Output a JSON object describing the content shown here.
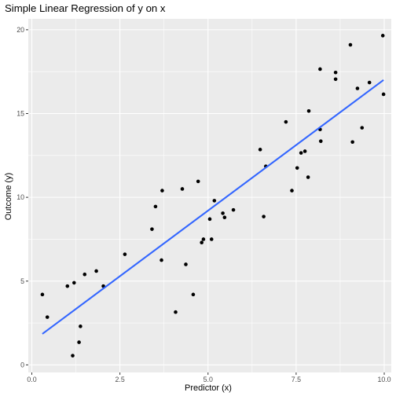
{
  "chart_data": {
    "type": "scatter",
    "title": "Simple Linear Regression of y on x",
    "xlabel": "Predictor (x)",
    "ylabel": "Outcome (y)",
    "xlim": [
      -0.1,
      10.2
    ],
    "ylim": [
      -0.45,
      20.65
    ],
    "x_ticks": [
      0,
      2.5,
      5,
      7.5,
      10
    ],
    "x_tick_labels": [
      "0.0",
      "2.5",
      "5.0",
      "7.5",
      "10.0"
    ],
    "y_ticks": [
      0,
      5,
      10,
      15,
      20
    ],
    "y_tick_labels": [
      "0",
      "5",
      "10",
      "15",
      "20"
    ],
    "grid": true,
    "background": "#ebebeb",
    "point_color": "#000000",
    "line_color": "#3366ff",
    "fit_line": {
      "x": [
        0.3,
        9.98
      ],
      "y": [
        1.85,
        17.0
      ]
    },
    "points": [
      {
        "x": 0.3,
        "y": 4.2
      },
      {
        "x": 0.44,
        "y": 2.85
      },
      {
        "x": 1.01,
        "y": 4.7
      },
      {
        "x": 1.16,
        "y": 0.55
      },
      {
        "x": 1.2,
        "y": 4.9
      },
      {
        "x": 1.34,
        "y": 1.35
      },
      {
        "x": 1.38,
        "y": 2.3
      },
      {
        "x": 1.5,
        "y": 5.4
      },
      {
        "x": 1.83,
        "y": 5.6
      },
      {
        "x": 2.03,
        "y": 4.7
      },
      {
        "x": 2.64,
        "y": 6.6
      },
      {
        "x": 3.41,
        "y": 8.1
      },
      {
        "x": 3.51,
        "y": 9.45
      },
      {
        "x": 3.68,
        "y": 6.25
      },
      {
        "x": 3.7,
        "y": 10.4
      },
      {
        "x": 4.08,
        "y": 3.15
      },
      {
        "x": 4.27,
        "y": 10.5
      },
      {
        "x": 4.37,
        "y": 6.0
      },
      {
        "x": 4.58,
        "y": 4.2
      },
      {
        "x": 4.72,
        "y": 10.95
      },
      {
        "x": 4.82,
        "y": 7.3
      },
      {
        "x": 4.87,
        "y": 7.5
      },
      {
        "x": 5.05,
        "y": 8.7
      },
      {
        "x": 5.1,
        "y": 7.5
      },
      {
        "x": 5.18,
        "y": 9.8
      },
      {
        "x": 5.42,
        "y": 9.05
      },
      {
        "x": 5.47,
        "y": 8.8
      },
      {
        "x": 5.72,
        "y": 9.25
      },
      {
        "x": 6.48,
        "y": 12.85
      },
      {
        "x": 6.58,
        "y": 8.85
      },
      {
        "x": 6.64,
        "y": 11.85
      },
      {
        "x": 7.21,
        "y": 14.5
      },
      {
        "x": 7.38,
        "y": 10.4
      },
      {
        "x": 7.53,
        "y": 11.75
      },
      {
        "x": 7.64,
        "y": 12.65
      },
      {
        "x": 7.75,
        "y": 12.75
      },
      {
        "x": 7.84,
        "y": 11.2
      },
      {
        "x": 7.86,
        "y": 15.15
      },
      {
        "x": 8.18,
        "y": 17.65
      },
      {
        "x": 8.18,
        "y": 14.05
      },
      {
        "x": 8.2,
        "y": 13.35
      },
      {
        "x": 8.62,
        "y": 17.45
      },
      {
        "x": 8.62,
        "y": 17.05
      },
      {
        "x": 9.04,
        "y": 19.1
      },
      {
        "x": 9.1,
        "y": 13.3
      },
      {
        "x": 9.24,
        "y": 16.5
      },
      {
        "x": 9.37,
        "y": 14.15
      },
      {
        "x": 9.58,
        "y": 16.85
      },
      {
        "x": 9.96,
        "y": 19.65
      },
      {
        "x": 9.98,
        "y": 16.15
      }
    ]
  }
}
